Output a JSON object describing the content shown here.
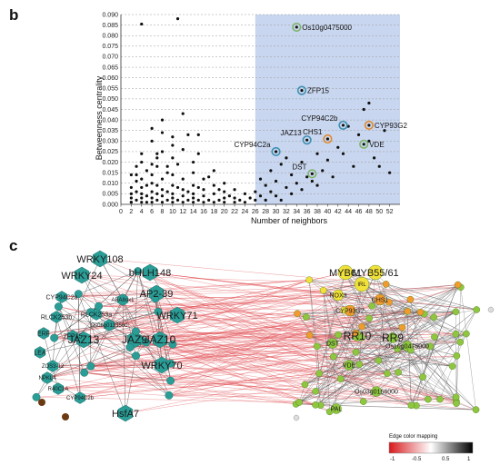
{
  "panels": {
    "b": "b",
    "c": "c"
  },
  "chart_data": {
    "type": "scatter",
    "xlabel": "Number of neighbors",
    "ylabel": "Betweenness centrality",
    "xlim": [
      0,
      54
    ],
    "ylim": [
      0,
      0.09
    ],
    "xticks": [
      0,
      2,
      4,
      6,
      8,
      10,
      12,
      14,
      16,
      18,
      20,
      22,
      24,
      26,
      28,
      30,
      32,
      34,
      36,
      38,
      40,
      42,
      44,
      46,
      48,
      50,
      52
    ],
    "yticks": [
      0,
      0.005,
      0.01,
      0.015,
      0.02,
      0.025,
      0.03,
      0.035,
      0.04,
      0.045,
      0.05,
      0.055,
      0.06,
      0.065,
      0.07,
      0.075,
      0.08,
      0.085,
      0.09
    ],
    "ytick_labels": [
      "0.000",
      "0.005",
      "0.010",
      "0.015",
      "0.020",
      "0.025",
      "0.030",
      "0.035",
      "0.040",
      "0.045",
      "0.050",
      "0.055",
      "0.060",
      "0.065",
      "0.070",
      "0.075",
      "0.080",
      "0.085",
      "0.090"
    ],
    "grid": true,
    "highlight_region": {
      "x_from": 26,
      "x_to": 54,
      "color": "#c9d6ef"
    },
    "points": [
      [
        2,
        0.001
      ],
      [
        2,
        0.003
      ],
      [
        2,
        0.005
      ],
      [
        2,
        0.008
      ],
      [
        2,
        0.014
      ],
      [
        2,
        0.001
      ],
      [
        3,
        0.002
      ],
      [
        3,
        0.006
      ],
      [
        3,
        0.011
      ],
      [
        3,
        0.018
      ],
      [
        3,
        0.014
      ],
      [
        4,
        0.001
      ],
      [
        4,
        0.003
      ],
      [
        4,
        0.005
      ],
      [
        4,
        0.008
      ],
      [
        4,
        0.012
      ],
      [
        4,
        0.02
      ],
      [
        4,
        0.024
      ],
      [
        4,
        0.0855
      ],
      [
        5,
        0.001
      ],
      [
        5,
        0.004
      ],
      [
        5,
        0.009
      ],
      [
        5,
        0.016
      ],
      [
        6,
        0.001
      ],
      [
        6,
        0.003
      ],
      [
        6,
        0.006
      ],
      [
        6,
        0.01
      ],
      [
        6,
        0.014
      ],
      [
        6,
        0.019
      ],
      [
        6,
        0.03
      ],
      [
        6,
        0.036
      ],
      [
        7,
        0.002
      ],
      [
        7,
        0.005
      ],
      [
        7,
        0.009
      ],
      [
        7,
        0.018
      ],
      [
        7,
        0.022
      ],
      [
        7,
        0.024
      ],
      [
        8,
        0.001
      ],
      [
        8,
        0.004
      ],
      [
        8,
        0.007
      ],
      [
        8,
        0.012
      ],
      [
        8,
        0.025
      ],
      [
        8,
        0.034
      ],
      [
        8,
        0.04
      ],
      [
        9,
        0.002
      ],
      [
        9,
        0.006
      ],
      [
        9,
        0.015
      ],
      [
        9,
        0.018
      ],
      [
        10,
        0.001
      ],
      [
        10,
        0.003
      ],
      [
        10,
        0.005
      ],
      [
        10,
        0.009
      ],
      [
        10,
        0.014
      ],
      [
        10,
        0.022
      ],
      [
        10,
        0.028
      ],
      [
        10,
        0.032
      ],
      [
        11,
        0.002
      ],
      [
        11,
        0.008
      ],
      [
        11,
        0.019
      ],
      [
        11,
        0.088
      ],
      [
        12,
        0.001
      ],
      [
        12,
        0.004
      ],
      [
        12,
        0.007
      ],
      [
        12,
        0.012
      ],
      [
        12,
        0.026
      ],
      [
        12,
        0.043
      ],
      [
        13,
        0.002
      ],
      [
        13,
        0.006
      ],
      [
        13,
        0.033
      ],
      [
        14,
        0.001
      ],
      [
        14,
        0.003
      ],
      [
        14,
        0.005
      ],
      [
        14,
        0.009
      ],
      [
        14,
        0.015
      ],
      [
        14,
        0.02
      ],
      [
        15,
        0.002
      ],
      [
        15,
        0.008
      ],
      [
        15,
        0.024
      ],
      [
        15,
        0.033
      ],
      [
        16,
        0.001
      ],
      [
        16,
        0.004
      ],
      [
        16,
        0.007
      ],
      [
        16,
        0.012
      ],
      [
        17,
        0.002
      ],
      [
        17,
        0.013
      ],
      [
        18,
        0.001
      ],
      [
        18,
        0.005
      ],
      [
        18,
        0.009
      ],
      [
        18,
        0.016
      ],
      [
        19,
        0.002
      ],
      [
        19,
        0.007
      ],
      [
        20,
        0.001
      ],
      [
        20,
        0.003
      ],
      [
        20,
        0.006
      ],
      [
        20,
        0.01
      ],
      [
        21,
        0.004
      ],
      [
        22,
        0.001
      ],
      [
        22,
        0.003
      ],
      [
        22,
        0.007
      ],
      [
        23,
        0.002
      ],
      [
        24,
        0.001
      ],
      [
        24,
        0.005
      ],
      [
        25,
        0.003
      ],
      [
        26,
        0.002
      ],
      [
        26,
        0.006
      ],
      [
        27,
        0.004
      ],
      [
        27,
        0.012
      ],
      [
        28,
        0.002
      ],
      [
        28,
        0.009
      ],
      [
        29,
        0.006
      ],
      [
        29,
        0.016
      ],
      [
        30,
        0.004
      ],
      [
        30,
        0.011
      ],
      [
        31,
        0.002
      ],
      [
        31,
        0.019
      ],
      [
        32,
        0.008
      ],
      [
        32,
        0.022
      ],
      [
        33,
        0.005
      ],
      [
        33,
        0.014
      ],
      [
        34,
        0.01
      ],
      [
        35,
        0.007
      ],
      [
        35,
        0.02
      ],
      [
        36,
        0.013
      ],
      [
        37,
        0.011
      ],
      [
        38,
        0.009
      ],
      [
        38,
        0.024
      ],
      [
        39,
        0.016
      ],
      [
        40,
        0.021
      ],
      [
        41,
        0.013
      ],
      [
        42,
        0.027
      ],
      [
        43,
        0.024
      ],
      [
        44,
        0.037
      ],
      [
        45,
        0.018
      ],
      [
        46,
        0.033
      ],
      [
        47,
        0.045
      ],
      [
        48,
        0.03
      ],
      [
        48,
        0.048
      ],
      [
        49,
        0.022
      ],
      [
        50,
        0.018
      ],
      [
        51,
        0.035
      ],
      [
        52,
        0.015
      ]
    ],
    "annotations": [
      {
        "label": "Os10g0475000",
        "x": 34,
        "y": 0.084,
        "ring": "#7fb46a"
      },
      {
        "label": "ZFP15",
        "x": 35,
        "y": 0.054,
        "ring": "#3b8fb0"
      },
      {
        "label": "CYP94C2b",
        "x": 43,
        "y": 0.0375,
        "ring": "#3b8fb0"
      },
      {
        "label": "CYP93G2",
        "x": 48,
        "y": 0.0375,
        "ring": "#e08a2e"
      },
      {
        "label": "CHS1",
        "x": 40,
        "y": 0.031,
        "ring": "#e08a2e"
      },
      {
        "label": "JAZ13",
        "x": 36,
        "y": 0.0305,
        "ring": "#3b8fb0"
      },
      {
        "label": "VDE",
        "x": 47,
        "y": 0.0285,
        "ring": "#7fb46a"
      },
      {
        "label": "CYP94C2a",
        "x": 30,
        "y": 0.025,
        "ring": "#3b8fb0"
      },
      {
        "label": "DST",
        "x": 37,
        "y": 0.0145,
        "ring": "#7fb46a"
      }
    ]
  },
  "network": {
    "left_module": {
      "color": "#2a9d96",
      "labels": [
        {
          "text": "WRKY108",
          "size": 11
        },
        {
          "text": "WRKY24",
          "size": 11
        },
        {
          "text": "bHLH148",
          "size": 11
        },
        {
          "text": "AP2-39",
          "size": 11
        },
        {
          "text": "CYP94C2a",
          "size": 7
        },
        {
          "text": "ABA8ox1",
          "size": 6
        },
        {
          "text": "RLCK253a",
          "size": 7
        },
        {
          "text": "RLCK253b",
          "size": 7
        },
        {
          "text": "Os06g0133500",
          "size": 6
        },
        {
          "text": "WRKY71",
          "size": 11
        },
        {
          "text": "ERF",
          "size": 7
        },
        {
          "text": "ZFP15",
          "size": 7
        },
        {
          "text": "JAZ13",
          "size": 12
        },
        {
          "text": "JAZ9",
          "size": 12
        },
        {
          "text": "JAZ10",
          "size": 12
        },
        {
          "text": "LEA",
          "size": 7
        },
        {
          "text": "ZOS3-12",
          "size": 6
        },
        {
          "text": "WRKY70",
          "size": 11
        },
        {
          "text": "NPKL4",
          "size": 6
        },
        {
          "text": "R40C1A",
          "size": 6
        },
        {
          "text": "CYP94C2b",
          "size": 6
        },
        {
          "text": "HsfA7",
          "size": 11
        }
      ]
    },
    "right_module": {
      "color": "#8ec63f",
      "labels": [
        {
          "text": "MYB61",
          "size": 11
        },
        {
          "text": "MYB55/61",
          "size": 11
        },
        {
          "text": "IRL",
          "size": 6
        },
        {
          "text": "NOX3",
          "size": 7
        },
        {
          "text": "CHS1",
          "size": 7
        },
        {
          "text": "CYP93G2",
          "size": 7
        },
        {
          "text": "RR10",
          "size": 12
        },
        {
          "text": "RR9",
          "size": 12
        },
        {
          "text": "DST",
          "size": 7
        },
        {
          "text": "Os10g0475000",
          "size": 7
        },
        {
          "text": "VDE",
          "size": 7
        },
        {
          "text": "Os03g0166000",
          "size": 7
        },
        {
          "text": "PAL",
          "size": 7
        }
      ]
    },
    "legend": {
      "title": "Edge color mapping",
      "ticks": [
        "-1",
        "-0.5",
        "0.5",
        "1"
      ],
      "colors": [
        "#d7191c",
        "#ffffff",
        "#000000"
      ]
    }
  }
}
